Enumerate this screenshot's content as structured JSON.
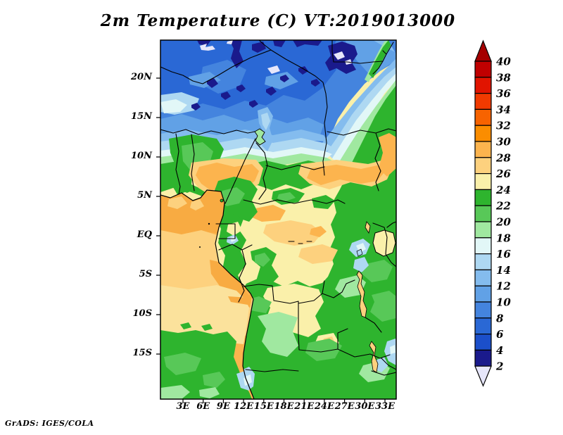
{
  "title": "2m Temperature (C) VT:2019013000",
  "credit": "GrADS: IGES/COLA",
  "axes": {
    "lat_labels": [
      "20N",
      "15N",
      "10N",
      "5N",
      "EQ",
      "5S",
      "10S",
      "15S"
    ],
    "lon_labels": [
      "3E",
      "6E",
      "9E",
      "12E",
      "15E",
      "18E",
      "21E",
      "24E",
      "27E",
      "30E",
      "33E"
    ]
  },
  "colorbar": {
    "tick_values": [
      40,
      38,
      36,
      34,
      32,
      30,
      28,
      26,
      24,
      22,
      20,
      18,
      16,
      14,
      12,
      10,
      8,
      6,
      4,
      2
    ],
    "over_arrow_color": "#a50000",
    "under_arrow_color": "#e6e6fa",
    "cell_colors_top_to_bottom": [
      "#c00000",
      "#e11400",
      "#f13a00",
      "#f76300",
      "#fb8d00",
      "#fcb44e",
      "#fdd17e",
      "#faf0aa",
      "#2eb42e",
      "#58c858",
      "#a0e8a0",
      "#e2f7f7",
      "#aed8f2",
      "#84bcee",
      "#61a1e6",
      "#4484de",
      "#2a68d5",
      "#1b4fca",
      "#1a1a8c"
    ]
  },
  "chart_data": {
    "type": "heatmap",
    "subtype": "filled-contour-map",
    "title": "2m Temperature (C) VT:2019013000",
    "variable": "2m Temperature",
    "units": "C",
    "valid_time": "2019013000",
    "region": "Central Africa",
    "x_ticks": [
      "3E",
      "6E",
      "9E",
      "12E",
      "15E",
      "18E",
      "21E",
      "24E",
      "27E",
      "30E",
      "33E"
    ],
    "y_ticks": [
      "20N",
      "15N",
      "10N",
      "5N",
      "EQ",
      "5S",
      "10S",
      "15S"
    ],
    "lon_range_deg_east": [
      0,
      34
    ],
    "lat_range_deg": [
      -21,
      25
    ],
    "contour_levels_C": [
      2,
      4,
      6,
      8,
      10,
      12,
      14,
      16,
      18,
      20,
      22,
      24,
      26,
      28,
      30,
      32,
      34,
      36,
      38,
      40
    ],
    "palette_low_to_high": [
      "#e6e6fa",
      "#1a1a8c",
      "#1b4fca",
      "#2a68d5",
      "#4484de",
      "#61a1e6",
      "#84bcee",
      "#aed8f2",
      "#e2f7f7",
      "#a0e8a0",
      "#58c858",
      "#2eb42e",
      "#faf0aa",
      "#fdd17e",
      "#fcb44e",
      "#fb8d00",
      "#f76300",
      "#f13a00",
      "#e11400",
      "#c00000",
      "#a50000"
    ],
    "legend_position": "right vertical colorbar with over/under arrows",
    "grid": false,
    "field_summary": [
      {
        "area": "Sahara / north of 15N",
        "approx_temp_C": "4-14, coldest pockets 2-4 with spots below 2"
      },
      {
        "area": "Sahel band 9N-13N",
        "approx_temp_C": "20-24 (green band)"
      },
      {
        "area": "Nigeria / Chad-Sudan patches 6N-10N",
        "approx_temp_C": "28-30 (orange patches)"
      },
      {
        "area": "Gulf of Guinea ocean",
        "approx_temp_C": "26-30, cooling southward to 22-24 by 15S"
      },
      {
        "area": "Congo basin",
        "approx_temp_C": "24-28 (pale yellow with 20-24 green patches)"
      },
      {
        "area": "East African rift and highlands",
        "approx_temp_C": "18-24 with 14-16 lake/highland spots"
      },
      {
        "area": "Angola / Zambia / Tanzania south of 5S",
        "approx_temp_C": "20-24"
      }
    ]
  }
}
